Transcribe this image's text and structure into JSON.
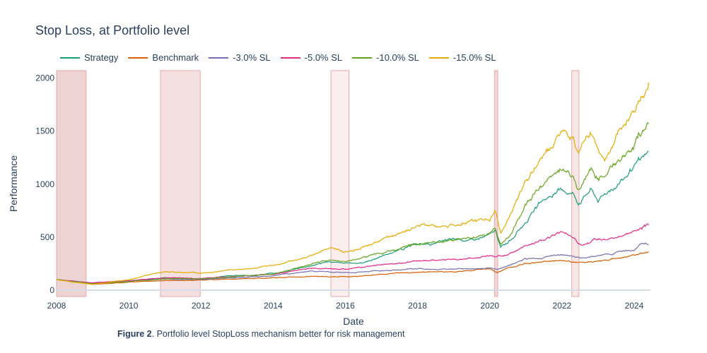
{
  "chart_data": {
    "type": "line",
    "title": "Stop Loss, at Portfolio level",
    "xlabel": "Date",
    "ylabel": "Performance",
    "xlim": [
      2008.0,
      2024.45
    ],
    "ylim": [
      -60,
      2070
    ],
    "x_ticks": [
      "2008",
      "2010",
      "2012",
      "2014",
      "2016",
      "2018",
      "2020",
      "2022",
      "2024"
    ],
    "y_ticks": [
      0,
      500,
      1000,
      1500,
      2000
    ],
    "legend_position": "top-left",
    "grid": false,
    "shaded_periods": [
      {
        "start": 2008.0,
        "end": 2008.82,
        "color": "#e8c4c4"
      },
      {
        "start": 2010.88,
        "end": 2011.98,
        "color": "#f0d6d6"
      },
      {
        "start": 2015.6,
        "end": 2016.1,
        "color": "#f8e8e8"
      },
      {
        "start": 2020.13,
        "end": 2020.22,
        "color": "#ecc9c9"
      },
      {
        "start": 2022.27,
        "end": 2022.47,
        "color": "#f3dede"
      }
    ],
    "series": [
      {
        "name": "Strategy",
        "color": "#1b9e77",
        "x": [
          2008,
          2008.5,
          2009,
          2009.5,
          2010,
          2010.5,
          2011,
          2011.5,
          2012,
          2012.5,
          2013,
          2013.5,
          2014,
          2014.5,
          2015,
          2015.5,
          2016,
          2016.5,
          2017,
          2017.5,
          2018,
          2018.5,
          2019,
          2019.5,
          2020,
          2020.15,
          2020.3,
          2020.6,
          2021,
          2021.5,
          2022,
          2022.3,
          2022.45,
          2022.8,
          2023,
          2023.5,
          2024,
          2024.4
        ],
        "values": [
          100,
          85,
          60,
          75,
          90,
          100,
          120,
          110,
          105,
          125,
          140,
          135,
          160,
          190,
          230,
          270,
          250,
          260,
          320,
          380,
          430,
          440,
          480,
          470,
          520,
          560,
          400,
          480,
          650,
          850,
          950,
          920,
          830,
          960,
          850,
          1000,
          1150,
          1290
        ]
      },
      {
        "name": "Benchmark",
        "color": "#d95f02",
        "x": [
          2008,
          2008.5,
          2009,
          2009.5,
          2010,
          2011,
          2012,
          2013,
          2014,
          2015,
          2016,
          2017,
          2018,
          2019,
          2020,
          2020.2,
          2020.5,
          2021,
          2022,
          2022.5,
          2023,
          2024,
          2024.4
        ],
        "values": [
          100,
          80,
          55,
          65,
          75,
          90,
          95,
          105,
          115,
          130,
          125,
          150,
          170,
          175,
          200,
          160,
          210,
          250,
          285,
          260,
          275,
          330,
          360
        ]
      },
      {
        "name": "-3.0% SL",
        "color": "#7570b3",
        "x": [
          2008,
          2008.5,
          2009,
          2010,
          2011,
          2012,
          2013,
          2014,
          2015,
          2016,
          2017,
          2018,
          2019,
          2020,
          2020.2,
          2020.5,
          2021,
          2022,
          2022.3,
          2022.5,
          2023,
          2024,
          2024.2,
          2024.4
        ],
        "values": [
          100,
          85,
          65,
          85,
          105,
          100,
          120,
          135,
          180,
          165,
          185,
          200,
          195,
          205,
          190,
          230,
          290,
          330,
          320,
          300,
          330,
          380,
          450,
          440
        ]
      },
      {
        "name": "-5.0% SL",
        "color": "#e7298a",
        "x": [
          2008,
          2008.5,
          2009,
          2010,
          2011,
          2012,
          2013,
          2014,
          2015,
          2016,
          2017,
          2018,
          2019,
          2020,
          2020.2,
          2020.5,
          2021,
          2021.5,
          2022,
          2022.3,
          2022.5,
          2023,
          2023.5,
          2024,
          2024.4
        ],
        "values": [
          100,
          85,
          70,
          90,
          115,
          110,
          130,
          150,
          210,
          195,
          240,
          270,
          290,
          320,
          310,
          340,
          410,
          480,
          550,
          500,
          430,
          480,
          500,
          560,
          610
        ]
      },
      {
        "name": "-10.0% SL",
        "color": "#66a61e",
        "x": [
          2008,
          2008.5,
          2009,
          2010,
          2011,
          2012,
          2013,
          2014,
          2015,
          2015.6,
          2016,
          2017,
          2018,
          2019,
          2020,
          2020.15,
          2020.3,
          2020.6,
          2021,
          2021.5,
          2022,
          2022.3,
          2022.45,
          2022.8,
          2023,
          2023.5,
          2024,
          2024.4
        ],
        "values": [
          100,
          80,
          60,
          80,
          110,
          105,
          130,
          150,
          240,
          290,
          270,
          350,
          440,
          470,
          530,
          570,
          420,
          530,
          800,
          1000,
          1150,
          1080,
          950,
          1150,
          1050,
          1200,
          1380,
          1570
        ]
      },
      {
        "name": "-15.0% SL",
        "color": "#e6ab02",
        "x": [
          2008,
          2008.5,
          2009,
          2010,
          2010.9,
          2011,
          2012,
          2013,
          2014,
          2015,
          2015.6,
          2016,
          2017,
          2018,
          2019,
          2020,
          2020.15,
          2020.3,
          2020.6,
          2021,
          2021.5,
          2022,
          2022.3,
          2022.45,
          2022.8,
          2023,
          2023.2,
          2023.5,
          2024,
          2024.4
        ],
        "values": [
          100,
          75,
          55,
          100,
          170,
          175,
          160,
          195,
          230,
          320,
          400,
          360,
          470,
          600,
          620,
          680,
          750,
          520,
          720,
          1000,
          1300,
          1500,
          1450,
          1250,
          1480,
          1300,
          1250,
          1450,
          1650,
          1930
        ]
      }
    ]
  },
  "caption": {
    "label": "Figure 2",
    "text": ". Portfolio level StopLoss mechanism better for risk management"
  }
}
